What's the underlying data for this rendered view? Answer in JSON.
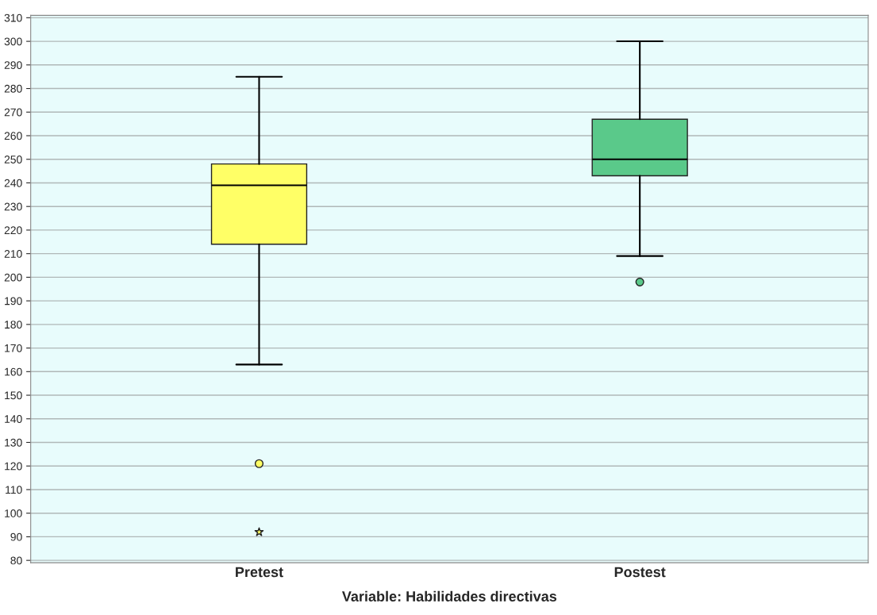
{
  "chart_data": {
    "type": "box",
    "xlabel": "Variable: Habilidades directivas",
    "categories": [
      "Pretest",
      "Postest"
    ],
    "boxes": [
      {
        "low": 163,
        "q1": 214,
        "median": 239,
        "q3": 248,
        "high": 285,
        "outliers": [
          121
        ]
      },
      {
        "low": 209,
        "q1": 243,
        "median": 250,
        "q3": 267,
        "high": 300,
        "outliers": [
          198
        ]
      }
    ],
    "colors": [
      "#ffff66",
      "#5ac98a"
    ],
    "series": [
      {
        "type": "scatter",
        "x": [
          "Pretest"
        ],
        "values": [
          92
        ],
        "marker": "star",
        "color": "#ffff66"
      }
    ],
    "ylim": [
      79,
      311
    ],
    "yticks": [
      80,
      90,
      100,
      110,
      120,
      130,
      140,
      150,
      160,
      170,
      180,
      190,
      200,
      210,
      220,
      230,
      240,
      250,
      260,
      270,
      280,
      290,
      300,
      310
    ],
    "grid": "y"
  }
}
